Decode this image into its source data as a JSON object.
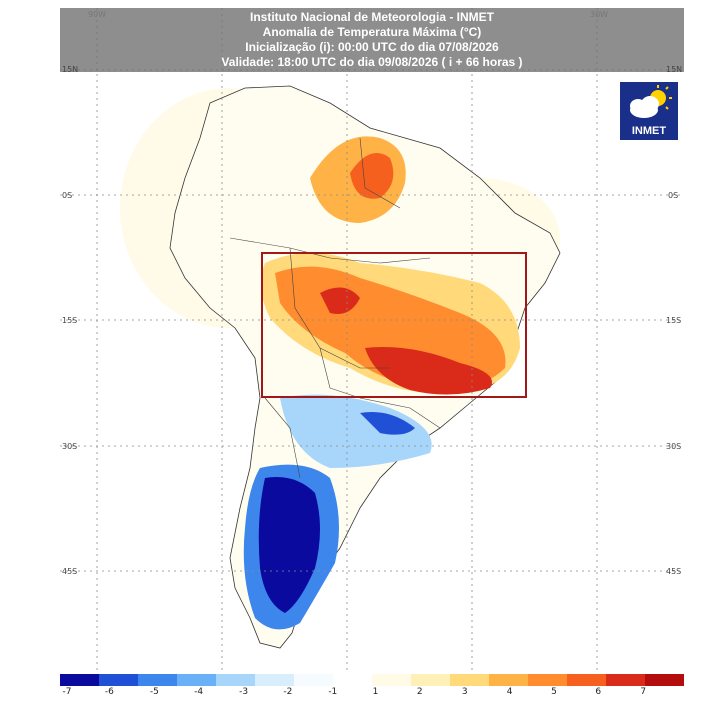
{
  "header": {
    "line1": "Instituto Nacional de Meteorologia - INMET",
    "line2": "Anomalia de Temperatura Máxima (°C)",
    "line3": "Inicialização (i): 00:00 UTC do dia 07/08/2026",
    "line4": "Validade: 18:00 UTC do dia 09/08/2026 ( i + 66 horas )"
  },
  "logo": {
    "text": "INMET",
    "icon": "cloud-sun-icon"
  },
  "grid": {
    "lon_labels": [
      "90W",
      "30W"
    ],
    "lat_labels": [
      "15N",
      "0S",
      "15S",
      "30S",
      "45S"
    ]
  },
  "colorbar": {
    "colors": [
      "#0a0a9e",
      "#1f50d6",
      "#3c86ec",
      "#6ab0f6",
      "#a8d5fa",
      "#d8eefc",
      "#f5fbff",
      "#ffffff",
      "#fffbe6",
      "#fff0b8",
      "#ffd97a",
      "#ffb347",
      "#ff8c2e",
      "#f5601e",
      "#d92a1a",
      "#b30d0d"
    ],
    "tick_labels": [
      "-7",
      "-6",
      "-5",
      "-4",
      "-3",
      "-2",
      "-1",
      "1",
      "2",
      "3",
      "4",
      "5",
      "6",
      "7"
    ]
  },
  "highlight_box": {
    "color": "#a01818"
  }
}
